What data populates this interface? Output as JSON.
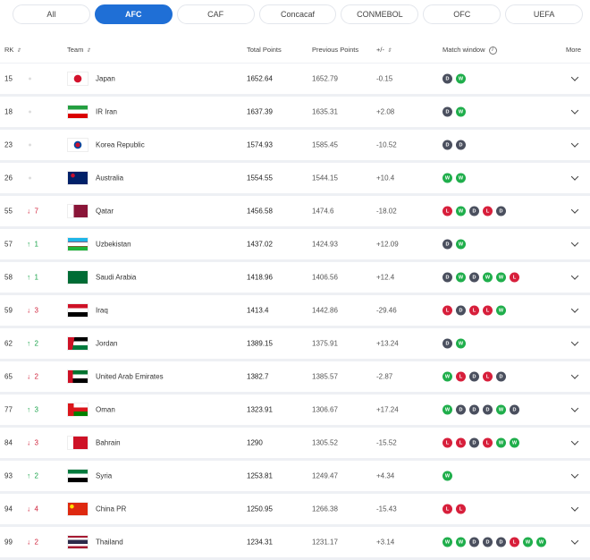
{
  "tabs": [
    {
      "label": "All"
    },
    {
      "label": "AFC",
      "active": true
    },
    {
      "label": "CAF"
    },
    {
      "label": "Concacaf"
    },
    {
      "label": "CONMEBOL"
    },
    {
      "label": "OFC"
    },
    {
      "label": "UEFA"
    }
  ],
  "columns": {
    "rk": "RK",
    "team": "Team",
    "total": "Total Points",
    "prev": "Previous Points",
    "diff": "+/-",
    "match": "Match window",
    "more": "More"
  },
  "rows": [
    {
      "rk": "15",
      "move": "same",
      "change": "",
      "team": "Japan",
      "flag": "japan",
      "total": "1652.64",
      "prev": "1652.79",
      "diff": "-0.15",
      "results": [
        "D",
        "W"
      ]
    },
    {
      "rk": "18",
      "move": "same",
      "change": "",
      "team": "IR Iran",
      "flag": "iran",
      "total": "1637.39",
      "prev": "1635.31",
      "diff": "+2.08",
      "results": [
        "D",
        "W"
      ]
    },
    {
      "rk": "23",
      "move": "same",
      "change": "",
      "team": "Korea Republic",
      "flag": "korea",
      "total": "1574.93",
      "prev": "1585.45",
      "diff": "-10.52",
      "results": [
        "D",
        "D"
      ]
    },
    {
      "rk": "26",
      "move": "same",
      "change": "",
      "team": "Australia",
      "flag": "australia",
      "total": "1554.55",
      "prev": "1544.15",
      "diff": "+10.4",
      "results": [
        "W",
        "W"
      ]
    },
    {
      "rk": "55",
      "move": "down",
      "change": "7",
      "team": "Qatar",
      "flag": "qatar",
      "total": "1456.58",
      "prev": "1474.6",
      "diff": "-18.02",
      "results": [
        "L",
        "W",
        "D",
        "L",
        "D"
      ]
    },
    {
      "rk": "57",
      "move": "up",
      "change": "1",
      "team": "Uzbekistan",
      "flag": "uzbekistan",
      "total": "1437.02",
      "prev": "1424.93",
      "diff": "+12.09",
      "results": [
        "D",
        "W"
      ]
    },
    {
      "rk": "58",
      "move": "up",
      "change": "1",
      "team": "Saudi Arabia",
      "flag": "saudi",
      "total": "1418.96",
      "prev": "1406.56",
      "diff": "+12.4",
      "results": [
        "D",
        "W",
        "D",
        "W",
        "W",
        "L"
      ]
    },
    {
      "rk": "59",
      "move": "down",
      "change": "3",
      "team": "Iraq",
      "flag": "iraq",
      "total": "1413.4",
      "prev": "1442.86",
      "diff": "-29.46",
      "results": [
        "L",
        "D",
        "L",
        "L",
        "W"
      ]
    },
    {
      "rk": "62",
      "move": "up",
      "change": "2",
      "team": "Jordan",
      "flag": "jordan",
      "total": "1389.15",
      "prev": "1375.91",
      "diff": "+13.24",
      "results": [
        "D",
        "W"
      ]
    },
    {
      "rk": "65",
      "move": "down",
      "change": "2",
      "team": "United Arab Emirates",
      "flag": "uae",
      "total": "1382.7",
      "prev": "1385.57",
      "diff": "-2.87",
      "results": [
        "W",
        "L",
        "D",
        "L",
        "D"
      ]
    },
    {
      "rk": "77",
      "move": "up",
      "change": "3",
      "team": "Oman",
      "flag": "oman",
      "total": "1323.91",
      "prev": "1306.67",
      "diff": "+17.24",
      "results": [
        "W",
        "D",
        "D",
        "D",
        "W",
        "D"
      ]
    },
    {
      "rk": "84",
      "move": "down",
      "change": "3",
      "team": "Bahrain",
      "flag": "bahrain",
      "total": "1290",
      "prev": "1305.52",
      "diff": "-15.52",
      "results": [
        "L",
        "L",
        "D",
        "L",
        "W",
        "W"
      ]
    },
    {
      "rk": "93",
      "move": "up",
      "change": "2",
      "team": "Syria",
      "flag": "syria",
      "total": "1253.81",
      "prev": "1249.47",
      "diff": "+4.34",
      "results": [
        "W"
      ]
    },
    {
      "rk": "94",
      "move": "down",
      "change": "4",
      "team": "China PR",
      "flag": "china",
      "total": "1250.95",
      "prev": "1266.38",
      "diff": "-15.43",
      "results": [
        "L",
        "L"
      ]
    },
    {
      "rk": "99",
      "move": "down",
      "change": "2",
      "team": "Thailand",
      "flag": "thailand",
      "total": "1234.31",
      "prev": "1231.17",
      "diff": "+3.14",
      "results": [
        "W",
        "W",
        "D",
        "D",
        "D",
        "L",
        "W",
        "W"
      ]
    }
  ],
  "colors": {
    "accent": "#1f6fd6",
    "win": "#1fae4b",
    "draw": "#4a4f5e",
    "loss": "#d71f3b",
    "up": "#1aa34a",
    "down": "#d0243c"
  }
}
